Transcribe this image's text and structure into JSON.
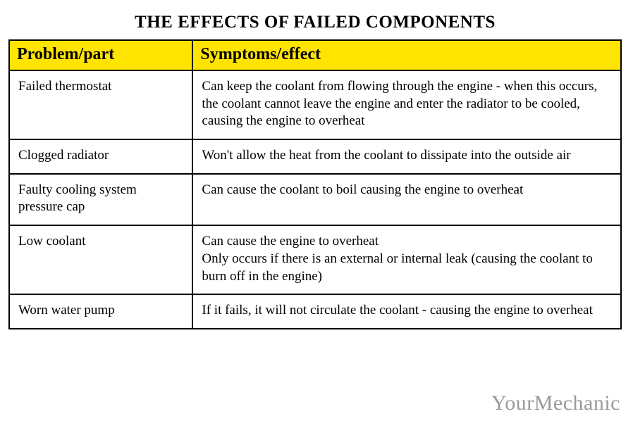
{
  "title": "THE EFFECTS OF FAILED COMPONENTS",
  "columns": [
    "Problem/part",
    "Symptoms/effect"
  ],
  "header_bg": "#ffe400",
  "border_color": "#000000",
  "body_bg": "#ffffff",
  "text_color": "#000000",
  "title_fontsize": 25,
  "header_fontsize": 24,
  "cell_fontsize": 19,
  "col_widths_pct": [
    30,
    70
  ],
  "rows": [
    {
      "problem": "Failed thermostat",
      "symptom": "Can keep the coolant from flowing through the engine - when this occurs, the coolant cannot leave the engine and enter the radiator to be cooled, causing the engine to overheat"
    },
    {
      "problem": "Clogged radiator",
      "symptom": "Won't allow the heat from the coolant to dissipate into the outside air"
    },
    {
      "problem": "Faulty cooling system pressure cap",
      "symptom": "Can cause the coolant to boil causing the engine to overheat"
    },
    {
      "problem": "Low coolant",
      "symptom": "Can cause the engine to overheat\nOnly occurs if there is an external or internal leak (causing the coolant to burn off in the engine)"
    },
    {
      "problem": "Worn water pump",
      "symptom": "If it fails, it will not circulate the coolant - causing the engine to overheat"
    }
  ],
  "watermark": "YourMechanic"
}
